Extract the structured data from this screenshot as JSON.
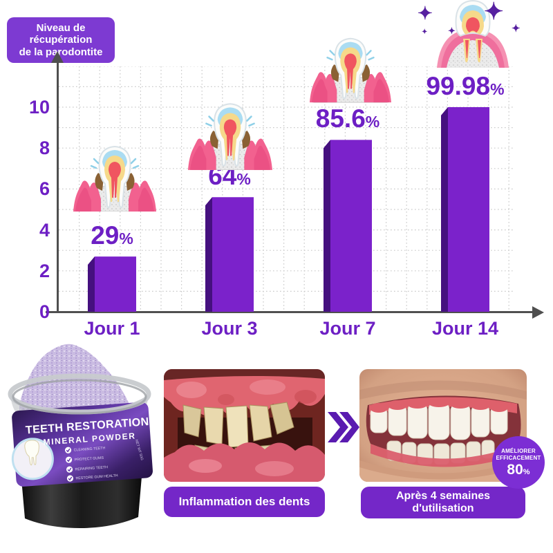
{
  "header_badge": {
    "line1": "Niveau de",
    "line2": "récupération",
    "line3": "de la parodontite"
  },
  "chart_data": {
    "type": "bar",
    "title": "Niveau de récupération de la parodontite",
    "categories": [
      "Jour 1",
      "Jour 3",
      "Jour 7",
      "Jour 14"
    ],
    "values": [
      29,
      64,
      85.6,
      99.98
    ],
    "value_labels": [
      "29",
      "64",
      "85.6",
      "99.98"
    ],
    "unit": "%",
    "bar_heights_axis_units": [
      2.7,
      5.6,
      8.4,
      10
    ],
    "yticks": [
      0,
      2,
      4,
      6,
      8,
      10
    ],
    "ylim": [
      0,
      10
    ],
    "grid": true,
    "legend": false,
    "bar_color": "#7b22cb",
    "bar_side_color": "#45107f",
    "label_color": "#6d1fc4",
    "axis_color": "#4f4f4f"
  },
  "decorations": {
    "sparkle_glyph": "✦",
    "tooth_stages": [
      "inflamed",
      "inflamed",
      "inflamed",
      "healthy"
    ]
  },
  "product": {
    "title": "TEETH RESTORATION",
    "subtitle": "MINERAL POWDER",
    "features": [
      "CLEANING TEETH",
      "PROTECT GUMS",
      "REPAIRING TEETH",
      "RESTORE GUM HEALTH"
    ],
    "net_weight": "NET WT 50G"
  },
  "comparison": {
    "before_caption": "Inflammation des dents",
    "after_caption_line1": "Après 4 semaines",
    "after_caption_line2": "d'utilisation",
    "efficacy_badge": {
      "line1": "AMÉLIORER",
      "line2": "EFFICACEMENT",
      "value": "80",
      "unit": "%"
    }
  }
}
